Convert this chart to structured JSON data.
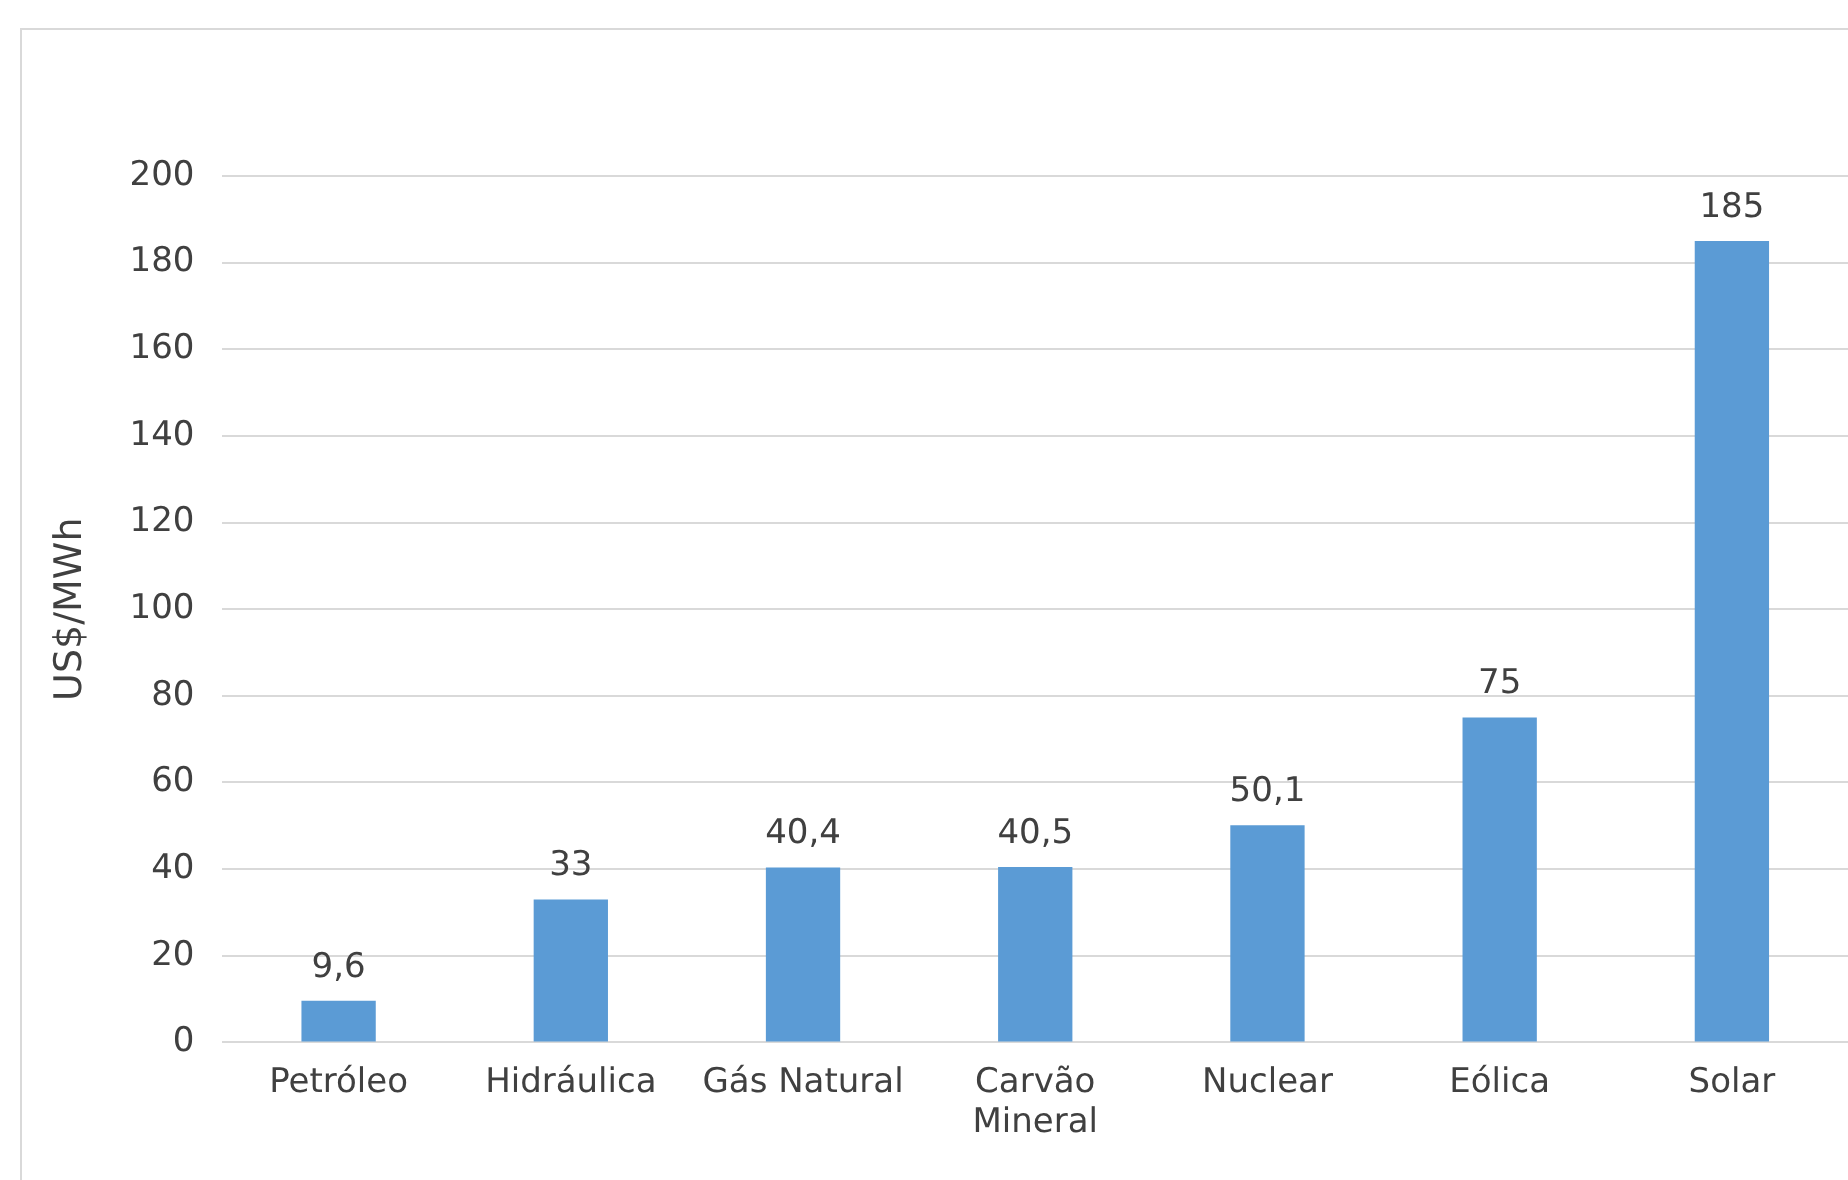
{
  "chart_data": {
    "type": "bar",
    "ylabel": "US$/MWh",
    "categories": [
      "Petróleo",
      "Hidráulica",
      "Gás Natural",
      "Carvão Mineral",
      "Nuclear",
      "Eólica",
      "Solar"
    ],
    "values": [
      9.6,
      33,
      40.4,
      40.5,
      50.1,
      75,
      185
    ],
    "value_labels": [
      "9,6",
      "33",
      "40,4",
      "40,5",
      "50,1",
      "75",
      "185"
    ],
    "color": "#5b9bd5",
    "ylim": [
      0,
      200
    ],
    "yticks": [
      0,
      20,
      40,
      60,
      80,
      100,
      120,
      140,
      160,
      180,
      200
    ],
    "grid": "y",
    "legend": false
  }
}
